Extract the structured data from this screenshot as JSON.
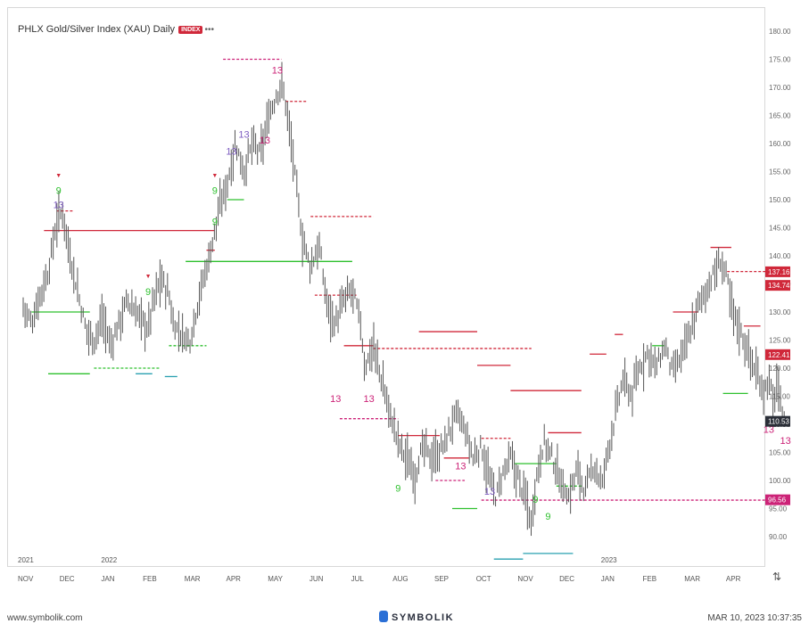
{
  "header": {
    "title": "PHLX Gold/Silver Index (XAU) Daily",
    "badge": "INDEX",
    "more": "•••"
  },
  "footer": {
    "site": "www.symbolik.com",
    "brand": "SYMBOLIK",
    "timestamp": "MAR 10, 2023 10:37:35"
  },
  "controls": {
    "resize_icon": "⇅"
  },
  "colors": {
    "bar": "#555555",
    "green": "#2ec02e",
    "red": "#d0283a",
    "pink": "#cc2277",
    "teal": "#2aa0b0",
    "last": "#2b2f38"
  },
  "chart_data": {
    "type": "bar",
    "title": "PHLX Gold/Silver Index (XAU) Daily",
    "y_ticks": [
      "180.00",
      "175.00",
      "170.00",
      "165.00",
      "160.00",
      "155.00",
      "150.00",
      "145.00",
      "140.00",
      "135.00",
      "130.00",
      "125.00",
      "120.00",
      "115.00",
      "110.00",
      "105.00",
      "100.00",
      "95.00",
      "90.00"
    ],
    "y_range": [
      87,
      182
    ],
    "x_labels": [
      "NOV",
      "DEC",
      "JAN",
      "FEB",
      "MAR",
      "APR",
      "MAY",
      "JUN",
      "JUL",
      "AUG",
      "SEP",
      "OCT",
      "NOV",
      "DEC",
      "JAN",
      "FEB",
      "MAR",
      "APR"
    ],
    "year_labels": [
      {
        "label": "2021",
        "at": "NOV"
      },
      {
        "label": "2022",
        "at": "JAN"
      },
      {
        "label": "2023",
        "at": "JAN"
      }
    ],
    "price_tags": [
      {
        "value": "137.16",
        "price": 137.16,
        "color": "#d0283a"
      },
      {
        "value": "134.74",
        "price": 134.74,
        "color": "#d0283a"
      },
      {
        "value": "122.41",
        "price": 122.41,
        "color": "#d0283a"
      },
      {
        "value": "110.53",
        "price": 110.53,
        "color": "#2b2f38"
      },
      {
        "value": "96.56",
        "price": 96.56,
        "color": "#cc2277"
      }
    ],
    "price_path": [
      [
        0,
        131
      ],
      [
        0.2,
        128
      ],
      [
        0.4,
        133
      ],
      [
        0.6,
        137
      ],
      [
        0.8,
        146
      ],
      [
        0.95,
        148
      ],
      [
        1.1,
        141
      ],
      [
        1.3,
        134
      ],
      [
        1.5,
        127
      ],
      [
        1.7,
        125
      ],
      [
        1.9,
        129
      ],
      [
        2.1,
        124
      ],
      [
        2.3,
        128
      ],
      [
        2.5,
        132
      ],
      [
        2.7,
        130
      ],
      [
        3.0,
        127
      ],
      [
        3.1,
        131
      ],
      [
        3.3,
        136
      ],
      [
        3.5,
        133
      ],
      [
        3.6,
        128
      ],
      [
        3.8,
        126
      ],
      [
        4.0,
        125
      ],
      [
        4.2,
        132
      ],
      [
        4.5,
        141
      ],
      [
        4.7,
        148
      ],
      [
        4.9,
        153
      ],
      [
        5.1,
        160
      ],
      [
        5.3,
        155
      ],
      [
        5.5,
        160
      ],
      [
        5.7,
        158
      ],
      [
        5.9,
        165
      ],
      [
        6.2,
        171
      ],
      [
        6.35,
        165
      ],
      [
        6.5,
        156
      ],
      [
        6.7,
        143
      ],
      [
        6.9,
        138
      ],
      [
        7.1,
        142
      ],
      [
        7.3,
        131
      ],
      [
        7.5,
        128
      ],
      [
        7.7,
        132
      ],
      [
        7.9,
        134
      ],
      [
        8.1,
        128
      ],
      [
        8.2,
        120
      ],
      [
        8.4,
        124
      ],
      [
        8.6,
        118
      ],
      [
        8.8,
        112
      ],
      [
        9.0,
        107
      ],
      [
        9.2,
        104
      ],
      [
        9.4,
        101
      ],
      [
        9.6,
        106
      ],
      [
        9.8,
        104
      ],
      [
        10.0,
        105
      ],
      [
        10.2,
        108
      ],
      [
        10.4,
        112
      ],
      [
        10.6,
        109
      ],
      [
        10.8,
        104
      ],
      [
        11.0,
        106
      ],
      [
        11.2,
        100
      ],
      [
        11.35,
        97
      ],
      [
        11.5,
        101
      ],
      [
        11.7,
        104
      ],
      [
        11.9,
        100
      ],
      [
        12.1,
        96
      ],
      [
        12.2,
        92
      ],
      [
        12.3,
        100
      ],
      [
        12.5,
        107
      ],
      [
        12.7,
        104
      ],
      [
        12.9,
        100
      ],
      [
        13.1,
        97
      ],
      [
        13.3,
        102
      ],
      [
        13.5,
        98
      ],
      [
        13.7,
        103
      ],
      [
        13.9,
        99
      ],
      [
        14.0,
        104
      ],
      [
        14.2,
        111
      ],
      [
        14.4,
        118
      ],
      [
        14.6,
        115
      ],
      [
        14.8,
        120
      ],
      [
        15.0,
        123
      ],
      [
        15.2,
        120
      ],
      [
        15.4,
        124
      ],
      [
        15.6,
        119
      ],
      [
        15.8,
        122
      ],
      [
        16.0,
        126
      ],
      [
        16.2,
        131
      ],
      [
        16.4,
        134
      ],
      [
        16.6,
        137
      ],
      [
        16.75,
        139
      ],
      [
        16.9,
        136
      ],
      [
        17.0,
        131
      ],
      [
        17.2,
        127
      ],
      [
        17.4,
        123
      ],
      [
        17.6,
        119
      ],
      [
        17.8,
        116
      ],
      [
        17.9,
        118
      ],
      [
        18.0,
        114
      ],
      [
        18.1,
        117
      ],
      [
        18.2,
        113
      ],
      [
        18.3,
        110.5
      ]
    ],
    "levels": [
      {
        "x1": 0.5,
        "x2": 4.6,
        "y": 144.5,
        "color": "#d0283a",
        "dash": false
      },
      {
        "x1": 0.8,
        "x2": 1.2,
        "y": 148,
        "color": "#d0283a",
        "dash": true
      },
      {
        "x1": 0.2,
        "x2": 1.6,
        "y": 130,
        "color": "#2ec02e",
        "dash": false
      },
      {
        "x1": 0.6,
        "x2": 1.6,
        "y": 119,
        "color": "#2ec02e",
        "dash": false
      },
      {
        "x1": 1.7,
        "x2": 3.3,
        "y": 120,
        "color": "#2ec02e",
        "dash": true
      },
      {
        "x1": 2.7,
        "x2": 3.1,
        "y": 119,
        "color": "#2aa0b0",
        "dash": false
      },
      {
        "x1": 3.4,
        "x2": 3.7,
        "y": 118.5,
        "color": "#2aa0b0",
        "dash": false
      },
      {
        "x1": 3.5,
        "x2": 4.4,
        "y": 124,
        "color": "#2ec02e",
        "dash": true
      },
      {
        "x1": 3.9,
        "x2": 7.9,
        "y": 139,
        "color": "#2ec02e",
        "dash": false
      },
      {
        "x1": 4.4,
        "x2": 4.6,
        "y": 141,
        "color": "#d0283a",
        "dash": false
      },
      {
        "x1": 4.9,
        "x2": 5.3,
        "y": 150,
        "color": "#2ec02e",
        "dash": false
      },
      {
        "x1": 4.8,
        "x2": 6.2,
        "y": 175,
        "color": "#cc2277",
        "dash": true
      },
      {
        "x1": 6.3,
        "x2": 6.8,
        "y": 167.5,
        "color": "#d0283a",
        "dash": true
      },
      {
        "x1": 6.9,
        "x2": 8.4,
        "y": 147,
        "color": "#d0283a",
        "dash": true
      },
      {
        "x1": 7.0,
        "x2": 8.0,
        "y": 133,
        "color": "#d0283a",
        "dash": true
      },
      {
        "x1": 7.7,
        "x2": 8.4,
        "y": 124,
        "color": "#d0283a",
        "dash": false
      },
      {
        "x1": 8.4,
        "x2": 12.2,
        "y": 123.5,
        "color": "#d0283a",
        "dash": true
      },
      {
        "x1": 7.6,
        "x2": 9.0,
        "y": 111,
        "color": "#cc2277",
        "dash": true
      },
      {
        "x1": 9.0,
        "x2": 10.0,
        "y": 108,
        "color": "#d0283a",
        "dash": false
      },
      {
        "x1": 9.5,
        "x2": 10.9,
        "y": 126.5,
        "color": "#d0283a",
        "dash": false
      },
      {
        "x1": 10.9,
        "x2": 11.7,
        "y": 120.5,
        "color": "#d0283a",
        "dash": false
      },
      {
        "x1": 9.9,
        "x2": 10.6,
        "y": 100,
        "color": "#cc2277",
        "dash": true
      },
      {
        "x1": 10.1,
        "x2": 10.7,
        "y": 104,
        "color": "#d0283a",
        "dash": false
      },
      {
        "x1": 10.3,
        "x2": 10.9,
        "y": 95,
        "color": "#2ec02e",
        "dash": false
      },
      {
        "x1": 11.0,
        "x2": 11.7,
        "y": 107.5,
        "color": "#d0283a",
        "dash": true
      },
      {
        "x1": 11.8,
        "x2": 12.8,
        "y": 103,
        "color": "#2ec02e",
        "dash": false
      },
      {
        "x1": 11.7,
        "x2": 13.4,
        "y": 116,
        "color": "#d0283a",
        "dash": false
      },
      {
        "x1": 12.6,
        "x2": 13.4,
        "y": 108.5,
        "color": "#d0283a",
        "dash": false
      },
      {
        "x1": 12.8,
        "x2": 13.4,
        "y": 99,
        "color": "#2ec02e",
        "dash": true
      },
      {
        "x1": 11.0,
        "x2": 18.3,
        "y": 96.5,
        "color": "#cc2277",
        "dash": true
      },
      {
        "x1": 11.3,
        "x2": 12.0,
        "y": 86,
        "color": "#2aa0b0",
        "dash": false
      },
      {
        "x1": 12.0,
        "x2": 13.2,
        "y": 87,
        "color": "#2aa0b0",
        "dash": false
      },
      {
        "x1": 13.6,
        "x2": 14.0,
        "y": 122.5,
        "color": "#d0283a",
        "dash": false
      },
      {
        "x1": 14.2,
        "x2": 14.4,
        "y": 126,
        "color": "#d0283a",
        "dash": false
      },
      {
        "x1": 15.1,
        "x2": 15.4,
        "y": 124,
        "color": "#2ec02e",
        "dash": false
      },
      {
        "x1": 15.6,
        "x2": 16.2,
        "y": 130,
        "color": "#d0283a",
        "dash": false
      },
      {
        "x1": 16.5,
        "x2": 17.0,
        "y": 141.5,
        "color": "#d0283a",
        "dash": false
      },
      {
        "x1": 16.9,
        "x2": 18.3,
        "y": 137.2,
        "color": "#d0283a",
        "dash": true
      },
      {
        "x1": 17.3,
        "x2": 17.7,
        "y": 127.5,
        "color": "#d0283a",
        "dash": false
      },
      {
        "x1": 16.8,
        "x2": 17.4,
        "y": 115.5,
        "color": "#2ec02e",
        "dash": false
      }
    ],
    "annotations": [
      {
        "x": 0.85,
        "y": 151,
        "t": "9",
        "c": "#2ec02e",
        "s": 11
      },
      {
        "x": 0.85,
        "y": 148.5,
        "t": "13",
        "c": "#7d5cc0",
        "s": 11
      },
      {
        "x": 0.85,
        "y": 154,
        "t": "▼",
        "c": "#d0283a",
        "s": 7
      },
      {
        "x": 3.0,
        "y": 133,
        "t": "9",
        "c": "#2ec02e",
        "s": 11
      },
      {
        "x": 3.0,
        "y": 136,
        "t": "▼",
        "c": "#d0283a",
        "s": 7
      },
      {
        "x": 4.6,
        "y": 151,
        "t": "9",
        "c": "#2ec02e",
        "s": 11
      },
      {
        "x": 4.6,
        "y": 145.5,
        "t": "9",
        "c": "#2ec02e",
        "s": 11
      },
      {
        "x": 4.6,
        "y": 154,
        "t": "▼",
        "c": "#d0283a",
        "s": 7
      },
      {
        "x": 5.0,
        "y": 158,
        "t": "13",
        "c": "#7d5cc0",
        "s": 11
      },
      {
        "x": 5.3,
        "y": 161,
        "t": "13",
        "c": "#7d5cc0",
        "s": 11
      },
      {
        "x": 5.8,
        "y": 160,
        "t": "13",
        "c": "#cc2277",
        "s": 11
      },
      {
        "x": 6.1,
        "y": 172.5,
        "t": "13",
        "c": "#cc2277",
        "s": 11
      },
      {
        "x": 7.5,
        "y": 114,
        "t": "13",
        "c": "#cc2277",
        "s": 11
      },
      {
        "x": 8.3,
        "y": 114,
        "t": "13",
        "c": "#cc2277",
        "s": 11
      },
      {
        "x": 9.0,
        "y": 98,
        "t": "9",
        "c": "#2ec02e",
        "s": 11
      },
      {
        "x": 10.5,
        "y": 102,
        "t": "13",
        "c": "#cc2277",
        "s": 11
      },
      {
        "x": 11.2,
        "y": 97.5,
        "t": "13",
        "c": "#7d5cc0",
        "s": 11
      },
      {
        "x": 12.3,
        "y": 96,
        "t": "9",
        "c": "#2ec02e",
        "s": 11
      },
      {
        "x": 12.6,
        "y": 93,
        "t": "9",
        "c": "#2ec02e",
        "s": 11
      },
      {
        "x": 17.9,
        "y": 108.5,
        "t": "13",
        "c": "#cc2277",
        "s": 11
      },
      {
        "x": 18.3,
        "y": 106.5,
        "t": "13",
        "c": "#cc2277",
        "s": 11
      }
    ]
  }
}
